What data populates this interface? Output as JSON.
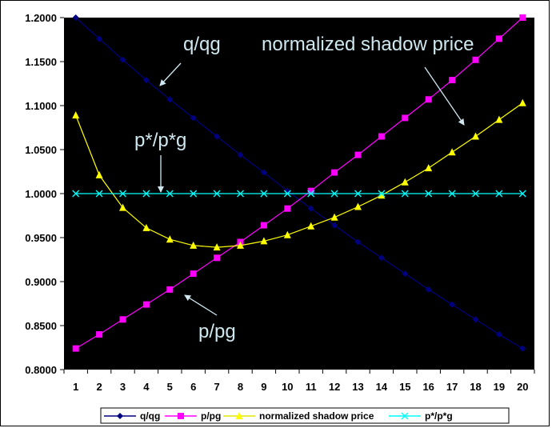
{
  "chart_data": {
    "type": "line",
    "title": "",
    "xlabel": "",
    "ylabel": "",
    "x": [
      1,
      2,
      3,
      4,
      5,
      6,
      7,
      8,
      9,
      10,
      11,
      12,
      13,
      14,
      15,
      16,
      17,
      18,
      19,
      20
    ],
    "ylim": [
      0.8,
      1.2
    ],
    "yticks": [
      "1.2000",
      "1.1500",
      "1.1000",
      "1.0500",
      "1.0000",
      "0.9500",
      "0.9000",
      "0.8500",
      "0.8000"
    ],
    "ytick_values": [
      1.2,
      1.15,
      1.1,
      1.05,
      1.0,
      0.95,
      0.9,
      0.85,
      0.8
    ],
    "grid": false,
    "plot_background": "#000000",
    "legend_position": "bottom",
    "series": [
      {
        "name": "q/qg",
        "color": "#000080",
        "marker": "diamond",
        "values": [
          1.2,
          1.176,
          1.152,
          1.129,
          1.107,
          1.086,
          1.065,
          1.044,
          1.024,
          1.003,
          0.983,
          0.964,
          0.945,
          0.927,
          0.909,
          0.891,
          0.874,
          0.857,
          0.84,
          0.824
        ]
      },
      {
        "name": "p/pg",
        "color": "#ff00ff",
        "marker": "square",
        "values": [
          0.824,
          0.84,
          0.857,
          0.874,
          0.891,
          0.909,
          0.927,
          0.945,
          0.964,
          0.983,
          1.003,
          1.024,
          1.044,
          1.065,
          1.086,
          1.107,
          1.129,
          1.152,
          1.176,
          1.2
        ]
      },
      {
        "name": "normalized shadow price",
        "color": "#ffff00",
        "marker": "triangle",
        "values": [
          1.089,
          1.021,
          0.984,
          0.961,
          0.948,
          0.941,
          0.939,
          0.941,
          0.946,
          0.953,
          0.963,
          0.973,
          0.985,
          0.998,
          1.013,
          1.029,
          1.047,
          1.065,
          1.084,
          1.103
        ]
      },
      {
        "name": "p*/p*g",
        "color": "#00ffff",
        "marker": "x",
        "values": [
          1,
          1,
          1,
          1,
          1,
          1,
          1,
          1,
          1,
          1,
          1,
          1,
          1,
          1,
          1,
          1,
          1,
          1,
          1,
          1
        ]
      }
    ],
    "annotations": [
      {
        "text": "q/qg",
        "x": 4.3,
        "y": 1.13
      },
      {
        "text": "normalized shadow price",
        "x": 18.5,
        "y": 1.075
      },
      {
        "text": "p*/p*g",
        "x": 4.0,
        "y": 1.0
      },
      {
        "text": "p/pg",
        "x": 5.3,
        "y": 0.895
      }
    ]
  }
}
